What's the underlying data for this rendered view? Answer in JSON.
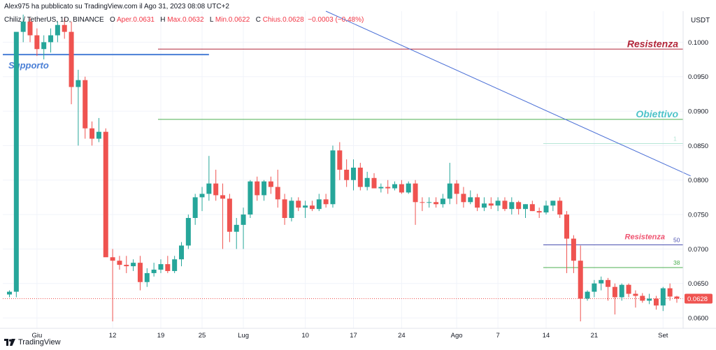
{
  "header": {
    "published": "Alex975 ha pubblicato su TradingView.com il Ago 31, 2023 08:08 UTC+2",
    "symbol": "Chiliz / TetherUS, 1D, BINANCE",
    "o_label": "O",
    "o_value": "Aper.0.0631",
    "h_label": "H",
    "h_value": "Max.0.0632",
    "l_label": "L",
    "l_value": "Min.0.0622",
    "c_label": "C",
    "c_value": "Chius.0.0628",
    "change": "−0.0003 (−0.48%)"
  },
  "brand": {
    "name": "TradingView",
    "logo": "tradingview-logo-icon"
  },
  "colors": {
    "up": "#26a69a",
    "down": "#ef5350",
    "resistance": "#b2263a",
    "target": "#4ec3c9",
    "support": "#4a7fd6",
    "trend": "#4a6fd6",
    "fib50": "#4a4fb0",
    "fib38": "#4caf50"
  },
  "chart_data": {
    "type": "candlestick",
    "currency": "USDT",
    "ylim": [
      0.0595,
      0.1045
    ],
    "y_ticks": [
      0.06,
      0.065,
      0.07,
      0.075,
      0.08,
      0.085,
      0.09,
      0.095,
      0.1
    ],
    "y_tick_labels": [
      "0.0600",
      "0.0650",
      "0.0700",
      "0.0750",
      "0.0800",
      "0.0850",
      "0.0900",
      "0.0950",
      "0.1000"
    ],
    "x_tick_labels": [
      {
        "label": "Giu",
        "index": 4
      },
      {
        "label": "12",
        "index": 15
      },
      {
        "label": "19",
        "index": 22
      },
      {
        "label": "25",
        "index": 28
      },
      {
        "label": "Lug",
        "index": 34
      },
      {
        "label": "10",
        "index": 43
      },
      {
        "label": "17",
        "index": 50
      },
      {
        "label": "24",
        "index": 57
      },
      {
        "label": "Ago",
        "index": 65
      },
      {
        "label": "7",
        "index": 71
      },
      {
        "label": "14",
        "index": 78
      },
      {
        "label": "21",
        "index": 85
      },
      {
        "label": "Set",
        "index": 95
      }
    ],
    "last_price": 0.0628,
    "last_price_label": "0.0628",
    "candles": [
      [
        0.0634,
        0.064,
        0.063,
        0.0638
      ],
      [
        0.0638,
        0.1012,
        0.063,
        0.1015
      ],
      [
        0.1015,
        0.104,
        0.1,
        0.103
      ],
      [
        0.103,
        0.1035,
        0.1,
        0.101
      ],
      [
        0.101,
        0.102,
        0.098,
        0.099
      ],
      [
        0.099,
        0.101,
        0.0975,
        0.1
      ],
      [
        0.1,
        0.102,
        0.0985,
        0.101
      ],
      [
        0.101,
        0.103,
        0.1,
        0.1025
      ],
      [
        0.1025,
        0.1035,
        0.1005,
        0.1015
      ],
      [
        0.1015,
        0.103,
        0.091,
        0.0935
      ],
      [
        0.0935,
        0.096,
        0.085,
        0.0945
      ],
      [
        0.0945,
        0.095,
        0.086,
        0.0875
      ],
      [
        0.0875,
        0.0885,
        0.085,
        0.086
      ],
      [
        0.086,
        0.089,
        0.0855,
        0.087
      ],
      [
        0.087,
        0.0875,
        0.069,
        0.0688
      ],
      [
        0.0688,
        0.07,
        0.0595,
        0.0683
      ],
      [
        0.0683,
        0.069,
        0.067,
        0.0677
      ],
      [
        0.0677,
        0.069,
        0.0665,
        0.0675
      ],
      [
        0.0675,
        0.0685,
        0.0668,
        0.068
      ],
      [
        0.068,
        0.069,
        0.064,
        0.0652
      ],
      [
        0.0652,
        0.0672,
        0.0645,
        0.0665
      ],
      [
        0.0665,
        0.068,
        0.066,
        0.067
      ],
      [
        0.067,
        0.0685,
        0.0665,
        0.0678
      ],
      [
        0.0678,
        0.069,
        0.0665,
        0.0668
      ],
      [
        0.0668,
        0.069,
        0.0665,
        0.0685
      ],
      [
        0.0685,
        0.071,
        0.0675,
        0.0705
      ],
      [
        0.0705,
        0.075,
        0.07,
        0.0745
      ],
      [
        0.0745,
        0.078,
        0.0735,
        0.0775
      ],
      [
        0.0775,
        0.079,
        0.0755,
        0.078
      ],
      [
        0.078,
        0.0835,
        0.077,
        0.0795
      ],
      [
        0.0795,
        0.0815,
        0.077,
        0.0778
      ],
      [
        0.0778,
        0.0795,
        0.07,
        0.0773
      ],
      [
        0.0773,
        0.078,
        0.071,
        0.0725
      ],
      [
        0.0725,
        0.0745,
        0.07,
        0.0735
      ],
      [
        0.0735,
        0.076,
        0.07,
        0.075
      ],
      [
        0.075,
        0.08,
        0.0745,
        0.0798
      ],
      [
        0.0798,
        0.0805,
        0.077,
        0.0778
      ],
      [
        0.0778,
        0.08,
        0.077,
        0.0798
      ],
      [
        0.0798,
        0.0805,
        0.078,
        0.079
      ],
      [
        0.079,
        0.0815,
        0.076,
        0.0772
      ],
      [
        0.0772,
        0.078,
        0.0735,
        0.0745
      ],
      [
        0.0745,
        0.0775,
        0.074,
        0.077
      ],
      [
        0.077,
        0.0775,
        0.0755,
        0.076
      ],
      [
        0.076,
        0.077,
        0.0745,
        0.0763
      ],
      [
        0.0763,
        0.077,
        0.0755,
        0.0758
      ],
      [
        0.0758,
        0.078,
        0.0755,
        0.0772
      ],
      [
        0.0772,
        0.078,
        0.076,
        0.0765
      ],
      [
        0.0765,
        0.085,
        0.076,
        0.0843
      ],
      [
        0.0843,
        0.0855,
        0.08,
        0.0815
      ],
      [
        0.0815,
        0.083,
        0.079,
        0.08
      ],
      [
        0.08,
        0.083,
        0.0785,
        0.0818
      ],
      [
        0.0818,
        0.0825,
        0.0785,
        0.079
      ],
      [
        0.079,
        0.0812,
        0.0785,
        0.0803
      ],
      [
        0.0803,
        0.081,
        0.079,
        0.0788
      ],
      [
        0.0788,
        0.0795,
        0.0782,
        0.079
      ],
      [
        0.079,
        0.08,
        0.078,
        0.0788
      ],
      [
        0.0788,
        0.0798,
        0.0785,
        0.0794
      ],
      [
        0.0794,
        0.08,
        0.078,
        0.0782
      ],
      [
        0.0782,
        0.0798,
        0.078,
        0.0795
      ],
      [
        0.0795,
        0.08,
        0.0735,
        0.0768
      ],
      [
        0.0768,
        0.0775,
        0.0755,
        0.0767
      ],
      [
        0.0767,
        0.0775,
        0.076,
        0.0768
      ],
      [
        0.0768,
        0.0775,
        0.076,
        0.0765
      ],
      [
        0.0765,
        0.078,
        0.076,
        0.0773
      ],
      [
        0.0773,
        0.0825,
        0.0765,
        0.0795
      ],
      [
        0.0795,
        0.08,
        0.0765,
        0.078
      ],
      [
        0.078,
        0.079,
        0.076,
        0.0768
      ],
      [
        0.0768,
        0.0785,
        0.0765,
        0.0775
      ],
      [
        0.0775,
        0.078,
        0.0755,
        0.076
      ],
      [
        0.076,
        0.0775,
        0.0755,
        0.0766
      ],
      [
        0.0766,
        0.0775,
        0.0758,
        0.0763
      ],
      [
        0.0763,
        0.0775,
        0.0755,
        0.077
      ],
      [
        0.077,
        0.0775,
        0.0755,
        0.0758
      ],
      [
        0.0758,
        0.0775,
        0.075,
        0.0768
      ],
      [
        0.0768,
        0.077,
        0.075,
        0.0758
      ],
      [
        0.0758,
        0.0765,
        0.0745,
        0.0765
      ],
      [
        0.0765,
        0.077,
        0.0755,
        0.0755
      ],
      [
        0.0755,
        0.076,
        0.0745,
        0.0753
      ],
      [
        0.0753,
        0.077,
        0.075,
        0.0763
      ],
      [
        0.0763,
        0.077,
        0.0755,
        0.077
      ],
      [
        0.077,
        0.0775,
        0.0745,
        0.075
      ],
      [
        0.075,
        0.0755,
        0.0665,
        0.0715
      ],
      [
        0.0715,
        0.072,
        0.0665,
        0.0683
      ],
      [
        0.0683,
        0.0705,
        0.0595,
        0.0628
      ],
      [
        0.0628,
        0.064,
        0.0625,
        0.0638
      ],
      [
        0.0638,
        0.0655,
        0.063,
        0.065
      ],
      [
        0.065,
        0.066,
        0.064,
        0.0655
      ],
      [
        0.0655,
        0.0658,
        0.0625,
        0.0645
      ],
      [
        0.0645,
        0.065,
        0.0605,
        0.063
      ],
      [
        0.063,
        0.065,
        0.0625,
        0.0648
      ],
      [
        0.0648,
        0.065,
        0.063,
        0.0635
      ],
      [
        0.0635,
        0.064,
        0.0615,
        0.0632
      ],
      [
        0.0632,
        0.0636,
        0.0622,
        0.0625
      ],
      [
        0.0625,
        0.0635,
        0.062,
        0.0628
      ],
      [
        0.0628,
        0.0632,
        0.0612,
        0.0618
      ],
      [
        0.0618,
        0.0645,
        0.061,
        0.0643
      ],
      [
        0.0643,
        0.065,
        0.0625,
        0.0631
      ],
      [
        0.0631,
        0.0632,
        0.0622,
        0.0628
      ]
    ],
    "annotations": [
      {
        "type": "hline",
        "name": "resistenza-alta",
        "label": "Resistenza",
        "value": 0.099,
        "from_index": 22,
        "to_index": 99,
        "color": "#b2263a",
        "label_color": "#b2263a"
      },
      {
        "type": "hline",
        "name": "obiettivo",
        "label": "Obiettivo",
        "value": 0.0888,
        "from_index": 22,
        "to_index": 99,
        "color": "#4caf50",
        "label_color": "#4ec3c9"
      },
      {
        "type": "hline",
        "name": "supporto",
        "label": "Supporto",
        "value": 0.0982,
        "from_index": 0,
        "to_index": 29,
        "color": "#4a7fd6",
        "label_color": "#4a7fd6"
      },
      {
        "type": "hline",
        "name": "fib-50",
        "label": "50",
        "value": 0.0706,
        "from_index": 78,
        "to_index": 99,
        "color": "#4a4fb0",
        "label_color": "#4a4fb0"
      },
      {
        "type": "hline",
        "name": "fib-38",
        "label": "38",
        "value": 0.0673,
        "from_index": 78,
        "to_index": 99,
        "color": "#4caf50",
        "label_color": "#4caf50"
      },
      {
        "type": "hline",
        "name": "fib-top",
        "label": "1",
        "value": 0.0853,
        "from_index": 78,
        "to_index": 99,
        "color": "#b6e6d6",
        "label_color": "#b6e6d6"
      },
      {
        "type": "text",
        "name": "resistenza-bassa",
        "label": "Resistenza",
        "value": 0.0712,
        "index": 94,
        "color": "#ef5370"
      },
      {
        "type": "trendline",
        "name": "trendline",
        "from": [
          46,
          0.1045
        ],
        "to": [
          99,
          0.0806
        ],
        "color": "#4a6fd6"
      }
    ]
  }
}
